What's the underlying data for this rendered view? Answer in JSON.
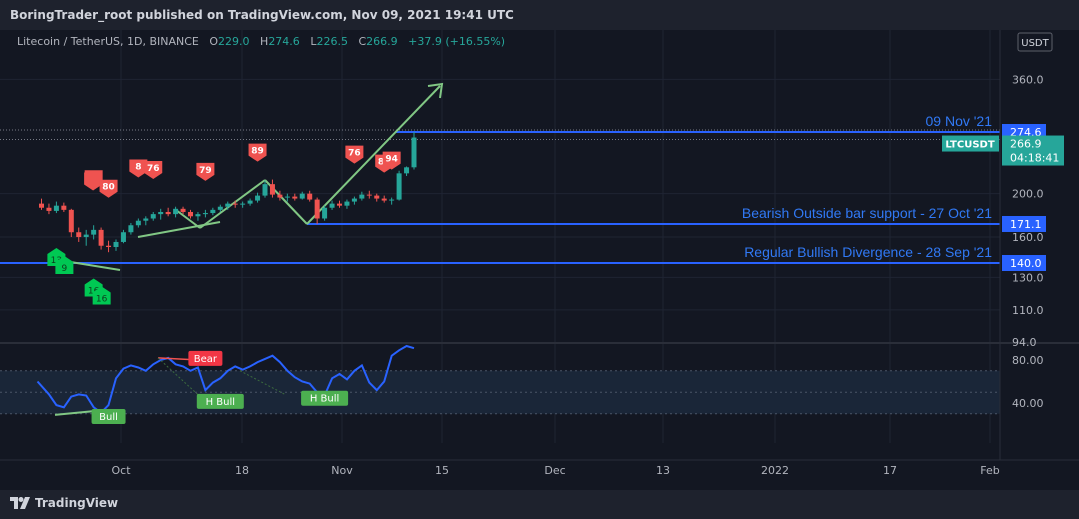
{
  "header": {
    "published": "BoringTrader_root published on TradingView.com, Nov 09, 2021 19:41 UTC"
  },
  "legend": {
    "symbol": "Litecoin / TetherUS, 1D, BINANCE",
    "o_label": "O",
    "o_value": "229.0",
    "h_label": "H",
    "h_value": "274.6",
    "l_label": "L",
    "l_value": "226.5",
    "c_label": "C",
    "c_value": "266.9",
    "change": "+37.9 (+16.55%)"
  },
  "brand": {
    "name": "TradingView",
    "icon": "tradingview-logo-icon"
  },
  "colors": {
    "background": "#131722",
    "frame": "#1e222d",
    "up": "#26a69a",
    "down": "#ef5350",
    "hline": "#2962ff",
    "annotation": "#3179f5",
    "trend": "#81c784",
    "oscillator": "#2962ff",
    "bear_label": "#f23645",
    "bull_label": "#4caf50"
  },
  "chart_data": {
    "type": "candlestick",
    "price_axis": {
      "unit_label": "USDT",
      "ticks": [
        "360.0",
        "200.0",
        "160.0",
        "130.0",
        "110.0",
        "94.0"
      ],
      "scale": "log"
    },
    "time_axis": {
      "ticks": [
        "Oct",
        "18",
        "Nov",
        "15",
        "Dec",
        "13",
        "2022",
        "17",
        "Feb"
      ]
    },
    "price_labels": [
      {
        "text": "274.6",
        "value": 274.6,
        "style": "blue"
      },
      {
        "text": "266.9",
        "value": 266.9,
        "style": "teal"
      },
      {
        "text": "LTCUSDT",
        "value": 266.9,
        "style": "teal"
      },
      {
        "text": "04:18:41",
        "value": 266.9,
        "style": "teal"
      },
      {
        "text": "171.1",
        "value": 171.1,
        "style": "blue"
      },
      {
        "text": "140.0",
        "value": 140.0,
        "style": "blue"
      }
    ],
    "horizontal_lines": [
      {
        "value": 274.6,
        "label": "09 Nov '21"
      },
      {
        "value": 171.1,
        "label": "Bearish Outside bar support - 27 Oct '21"
      },
      {
        "value": 140.0,
        "label": "Regular Bullish Divergence - 28 Sep '21"
      }
    ],
    "candles": [
      {
        "date": "2021-09-20",
        "o": 190,
        "h": 195,
        "l": 184,
        "c": 186
      },
      {
        "date": "2021-09-21",
        "o": 186,
        "h": 190,
        "l": 180,
        "c": 183
      },
      {
        "date": "2021-09-22",
        "o": 183,
        "h": 192,
        "l": 181,
        "c": 188
      },
      {
        "date": "2021-09-23",
        "o": 188,
        "h": 191,
        "l": 182,
        "c": 184
      },
      {
        "date": "2021-09-24",
        "o": 184,
        "h": 185,
        "l": 160,
        "c": 164
      },
      {
        "date": "2021-09-25",
        "o": 164,
        "h": 168,
        "l": 156,
        "c": 160
      },
      {
        "date": "2021-09-26",
        "o": 160,
        "h": 166,
        "l": 153,
        "c": 162
      },
      {
        "date": "2021-09-27",
        "o": 162,
        "h": 170,
        "l": 158,
        "c": 166
      },
      {
        "date": "2021-09-28",
        "o": 166,
        "h": 168,
        "l": 150,
        "c": 153
      },
      {
        "date": "2021-09-29",
        "o": 153,
        "h": 157,
        "l": 148,
        "c": 152
      },
      {
        "date": "2021-09-30",
        "o": 152,
        "h": 158,
        "l": 149,
        "c": 156
      },
      {
        "date": "2021-10-01",
        "o": 156,
        "h": 166,
        "l": 155,
        "c": 164
      },
      {
        "date": "2021-10-02",
        "o": 164,
        "h": 172,
        "l": 162,
        "c": 170
      },
      {
        "date": "2021-10-03",
        "o": 170,
        "h": 176,
        "l": 168,
        "c": 174
      },
      {
        "date": "2021-10-04",
        "o": 174,
        "h": 178,
        "l": 170,
        "c": 176
      },
      {
        "date": "2021-10-05",
        "o": 176,
        "h": 182,
        "l": 174,
        "c": 180
      },
      {
        "date": "2021-10-06",
        "o": 180,
        "h": 185,
        "l": 175,
        "c": 182
      },
      {
        "date": "2021-10-07",
        "o": 182,
        "h": 186,
        "l": 178,
        "c": 180
      },
      {
        "date": "2021-10-08",
        "o": 180,
        "h": 187,
        "l": 177,
        "c": 185
      },
      {
        "date": "2021-10-09",
        "o": 185,
        "h": 187,
        "l": 180,
        "c": 182
      },
      {
        "date": "2021-10-10",
        "o": 182,
        "h": 184,
        "l": 176,
        "c": 178
      },
      {
        "date": "2021-10-11",
        "o": 178,
        "h": 182,
        "l": 174,
        "c": 180
      },
      {
        "date": "2021-10-12",
        "o": 180,
        "h": 184,
        "l": 177,
        "c": 181
      },
      {
        "date": "2021-10-13",
        "o": 181,
        "h": 186,
        "l": 179,
        "c": 184
      },
      {
        "date": "2021-10-14",
        "o": 184,
        "h": 189,
        "l": 182,
        "c": 187
      },
      {
        "date": "2021-10-15",
        "o": 187,
        "h": 192,
        "l": 184,
        "c": 190
      },
      {
        "date": "2021-10-16",
        "o": 190,
        "h": 193,
        "l": 186,
        "c": 189
      },
      {
        "date": "2021-10-17",
        "o": 189,
        "h": 192,
        "l": 186,
        "c": 190
      },
      {
        "date": "2021-10-18",
        "o": 190,
        "h": 195,
        "l": 188,
        "c": 193
      },
      {
        "date": "2021-10-19",
        "o": 193,
        "h": 201,
        "l": 191,
        "c": 198
      },
      {
        "date": "2021-10-20",
        "o": 198,
        "h": 214,
        "l": 196,
        "c": 210
      },
      {
        "date": "2021-10-21",
        "o": 210,
        "h": 215,
        "l": 196,
        "c": 199
      },
      {
        "date": "2021-10-22",
        "o": 199,
        "h": 203,
        "l": 193,
        "c": 196
      },
      {
        "date": "2021-10-23",
        "o": 196,
        "h": 200,
        "l": 192,
        "c": 197
      },
      {
        "date": "2021-10-24",
        "o": 197,
        "h": 200,
        "l": 193,
        "c": 195
      },
      {
        "date": "2021-10-25",
        "o": 195,
        "h": 202,
        "l": 194,
        "c": 200
      },
      {
        "date": "2021-10-26",
        "o": 200,
        "h": 203,
        "l": 192,
        "c": 194
      },
      {
        "date": "2021-10-27",
        "o": 194,
        "h": 196,
        "l": 171,
        "c": 176
      },
      {
        "date": "2021-10-28",
        "o": 176,
        "h": 188,
        "l": 174,
        "c": 186
      },
      {
        "date": "2021-10-29",
        "o": 186,
        "h": 193,
        "l": 184,
        "c": 190
      },
      {
        "date": "2021-10-30",
        "o": 190,
        "h": 193,
        "l": 186,
        "c": 188
      },
      {
        "date": "2021-10-31",
        "o": 188,
        "h": 194,
        "l": 185,
        "c": 192
      },
      {
        "date": "2021-11-01",
        "o": 192,
        "h": 197,
        "l": 189,
        "c": 195
      },
      {
        "date": "2021-11-02",
        "o": 195,
        "h": 202,
        "l": 193,
        "c": 199
      },
      {
        "date": "2021-11-03",
        "o": 199,
        "h": 203,
        "l": 195,
        "c": 198
      },
      {
        "date": "2021-11-04",
        "o": 198,
        "h": 200,
        "l": 192,
        "c": 195
      },
      {
        "date": "2021-11-05",
        "o": 195,
        "h": 198,
        "l": 191,
        "c": 193
      },
      {
        "date": "2021-11-06",
        "o": 193,
        "h": 196,
        "l": 189,
        "c": 194
      },
      {
        "date": "2021-11-07",
        "o": 194,
        "h": 225,
        "l": 193,
        "c": 222
      },
      {
        "date": "2021-11-08",
        "o": 222,
        "h": 230,
        "l": 219,
        "c": 229
      },
      {
        "date": "2021-11-09",
        "o": 229.0,
        "h": 274.6,
        "l": 226.5,
        "c": 266.9
      }
    ],
    "markers": [
      {
        "date": "2021-09-27",
        "type": "bear",
        "text": ""
      },
      {
        "date": "2021-09-28",
        "type": "bear",
        "text": ""
      },
      {
        "date": "2021-09-29",
        "type": "bear",
        "text": "80"
      },
      {
        "date": "2021-10-03",
        "type": "bear",
        "text": "8"
      },
      {
        "date": "2021-10-05",
        "type": "bear",
        "text": "76"
      },
      {
        "date": "2021-10-12",
        "type": "bear",
        "text": "79"
      },
      {
        "date": "2021-10-19",
        "type": "bear",
        "text": "89"
      },
      {
        "date": "2021-11-01",
        "type": "bear",
        "text": "76"
      },
      {
        "date": "2021-11-05",
        "type": "bear",
        "text": "87"
      },
      {
        "date": "2021-11-06",
        "type": "bear",
        "text": "94"
      },
      {
        "date": "2021-09-22",
        "type": "bull",
        "text": "13"
      },
      {
        "date": "2021-09-22",
        "type": "bull",
        "text": "9"
      },
      {
        "date": "2021-09-27",
        "type": "bull",
        "text": "16"
      },
      {
        "date": "2021-09-27",
        "type": "bull",
        "text": "16"
      }
    ],
    "oscillator": {
      "ticks": [
        "80.00",
        "40.00"
      ],
      "bands": [
        30,
        50,
        70
      ],
      "labels": [
        {
          "text": "Bear",
          "date": "2021-10-12",
          "value": 81,
          "type": "bear"
        },
        {
          "text": "H Bull",
          "date": "2021-10-14",
          "value": 41,
          "type": "bull"
        },
        {
          "text": "H Bull",
          "date": "2021-10-28",
          "value": 44,
          "type": "bull"
        },
        {
          "text": "Bull",
          "date": "2021-09-29",
          "value": 27,
          "type": "bull"
        }
      ],
      "values": [
        60,
        48,
        38,
        36,
        46,
        48,
        47,
        36,
        31,
        38,
        63,
        72,
        75,
        73,
        70,
        76,
        80,
        82,
        76,
        74,
        70,
        73,
        52,
        59,
        63,
        70,
        74,
        71,
        74,
        78,
        81,
        84,
        78,
        70,
        64,
        60,
        58,
        50,
        47,
        63,
        67,
        62,
        70,
        75,
        59,
        52,
        60,
        84,
        89,
        93,
        91
      ]
    }
  }
}
